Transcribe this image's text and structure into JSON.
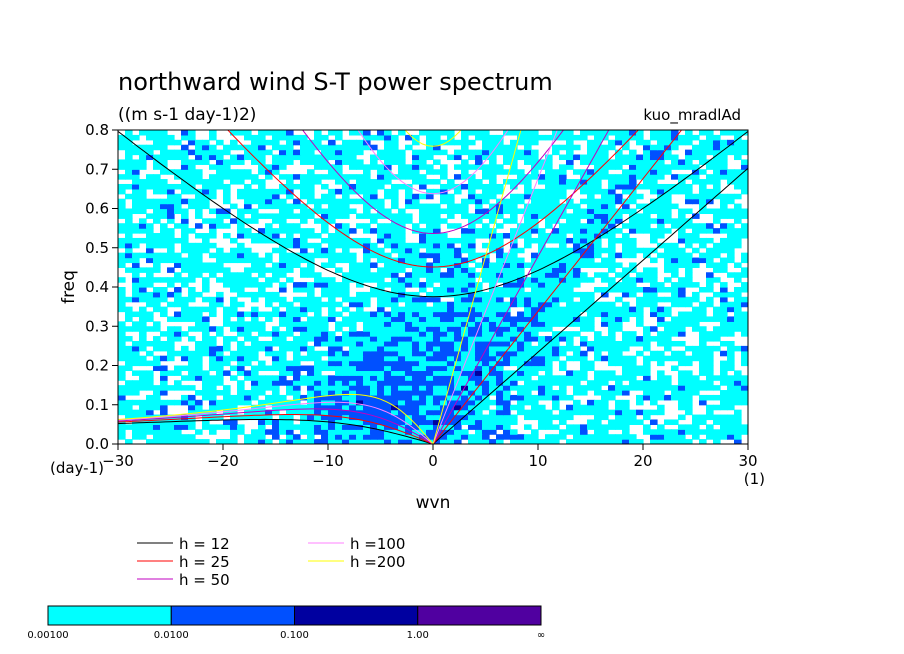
{
  "chart_data": {
    "type": "heatmap",
    "title": "northward wind S-T power spectrum",
    "subtitle": "((m s-1 day-1)2)",
    "run_label": "kuo_mradlAd",
    "xlabel": "wvn",
    "ylabel": "freq",
    "x_unit": "(1)",
    "y_unit": "(day-1)",
    "xlim": [
      -30,
      30
    ],
    "ylim": [
      0,
      0.8
    ],
    "x_ticks": [
      -30,
      -20,
      -10,
      0,
      10,
      20,
      30
    ],
    "x_tick_labels": [
      "−30",
      "−20",
      "−10",
      "0",
      "10",
      "20",
      "30"
    ],
    "y_ticks": [
      0.0,
      0.1,
      0.2,
      0.3,
      0.4,
      0.5,
      0.6,
      0.7,
      0.8
    ],
    "y_tick_labels": [
      "0.0",
      "0.1",
      "0.2",
      "0.3",
      "0.4",
      "0.5",
      "0.6",
      "0.7",
      "0.8"
    ],
    "colorbar": {
      "boundaries": [
        "0.00100",
        "0.0100",
        "0.100",
        "1.00",
        "∞"
      ],
      "colors": [
        "#00ffff",
        "#0050ff",
        "#0000a0",
        "#5000a0"
      ]
    },
    "legend": {
      "title_prefix": "h",
      "entries": [
        {
          "label": "h = 12",
          "h": 12,
          "color": "#000000"
        },
        {
          "label": "h = 25",
          "h": 25,
          "color": "#ff0000"
        },
        {
          "label": "h = 50",
          "h": 50,
          "color": "#c000c0"
        },
        {
          "label": "h =100",
          "h": 100,
          "color": "#ff80ff"
        },
        {
          "label": "h =200",
          "h": 200,
          "color": "#ffff00"
        }
      ]
    },
    "curves": {
      "series": [
        "Kelvin",
        "inertia-gravity n=1",
        "Rossby n=1"
      ],
      "kelvin_peak_freq_h12": 0.07,
      "ig_min_freq": {
        "h12": 0.37,
        "h25": 0.44,
        "h50": 0.52,
        "h100": 0.63,
        "h200": 0.75
      }
    }
  }
}
